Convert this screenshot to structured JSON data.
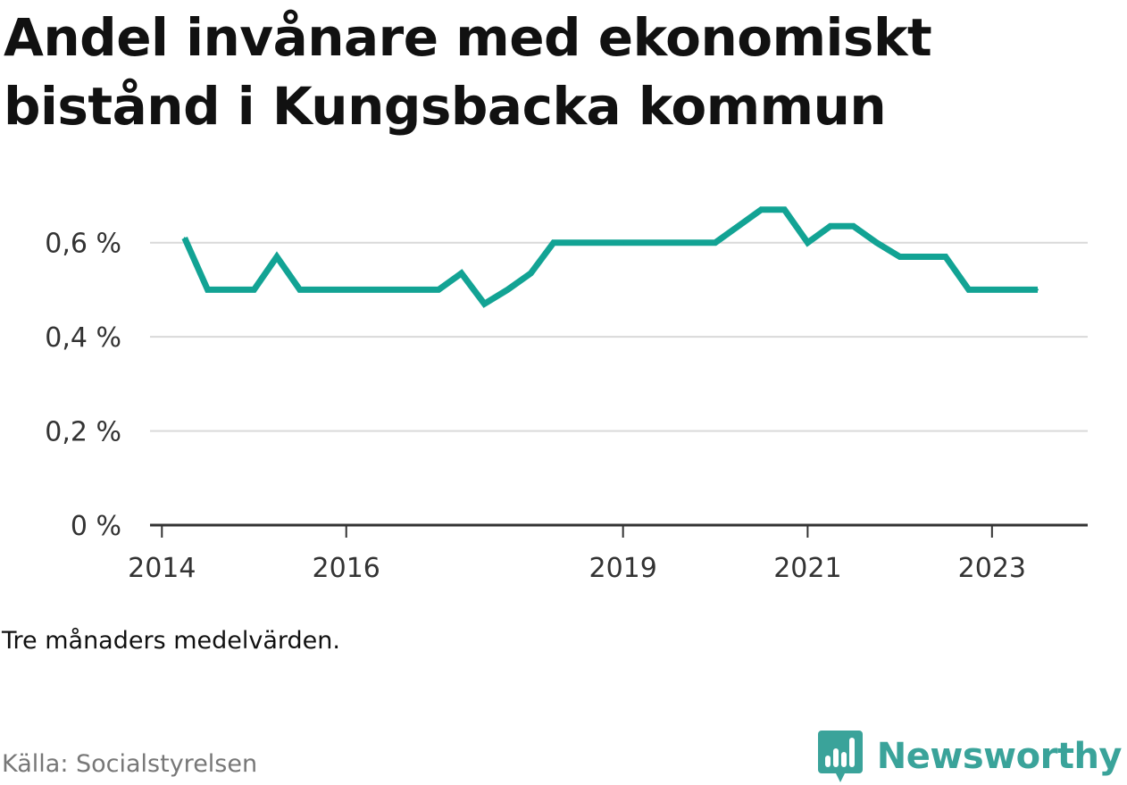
{
  "title": "Andel invånare med ekonomiskt bistånd i Kungsbacka kommun",
  "note": "Tre månaders medelvärden.",
  "source": "Källa: Socialstyrelsen",
  "brand": {
    "name": "Newsworthy",
    "icon": "newsworthy-logo-icon",
    "color": "#3aa39a"
  },
  "colors": {
    "line": "#12a394",
    "grid": "#d9d9d9",
    "axis": "#333333"
  },
  "chart_data": {
    "type": "line",
    "title": "Andel invånare med ekonomiskt bistånd i Kungsbacka kommun",
    "xlabel": "",
    "ylabel": "",
    "ylim": [
      0,
      0.7
    ],
    "xlim": [
      "2013-11-15",
      "2024-01-15"
    ],
    "y_ticks": [
      {
        "value": 0,
        "label": "0 %"
      },
      {
        "value": 0.2,
        "label": "0,2 %"
      },
      {
        "value": 0.4,
        "label": "0,4 %"
      },
      {
        "value": 0.6,
        "label": "0,6 %"
      }
    ],
    "x_ticks": [
      {
        "value": "2014-01-01",
        "label": "2014"
      },
      {
        "value": "2016-01-01",
        "label": "2016"
      },
      {
        "value": "2019-01-01",
        "label": "2019"
      },
      {
        "value": "2021-01-01",
        "label": "2021"
      },
      {
        "value": "2023-01-01",
        "label": "2023"
      }
    ],
    "grid": true,
    "legend": "none",
    "series": [
      {
        "x": [
          "2014-04-01",
          "2014-07-01",
          "2014-10-01",
          "2015-01-01",
          "2015-04-01",
          "2015-07-01",
          "2015-10-01",
          "2016-01-01",
          "2016-04-01",
          "2016-07-01",
          "2016-10-01",
          "2017-01-01",
          "2017-04-01",
          "2017-07-01",
          "2017-10-01",
          "2018-01-01",
          "2018-04-01",
          "2018-07-01",
          "2018-10-01",
          "2019-01-01",
          "2019-04-01",
          "2019-07-01",
          "2019-10-01",
          "2020-01-01",
          "2020-04-01",
          "2020-07-01",
          "2020-10-01",
          "2021-01-01",
          "2021-04-01",
          "2021-07-01",
          "2021-10-01",
          "2022-01-01",
          "2022-04-01",
          "2022-07-01",
          "2022-10-01",
          "2023-01-01",
          "2023-04-01",
          "2023-07-01"
        ],
        "y": [
          0.61,
          0.5,
          0.5,
          0.5,
          0.57,
          0.5,
          0.5,
          0.5,
          0.5,
          0.5,
          0.5,
          0.5,
          0.535,
          0.47,
          0.5,
          0.535,
          0.6,
          0.6,
          0.6,
          0.6,
          0.6,
          0.6,
          0.6,
          0.6,
          0.635,
          0.67,
          0.67,
          0.6,
          0.635,
          0.635,
          0.6,
          0.57,
          0.57,
          0.57,
          0.5,
          0.5,
          0.5,
          0.5
        ]
      }
    ]
  }
}
